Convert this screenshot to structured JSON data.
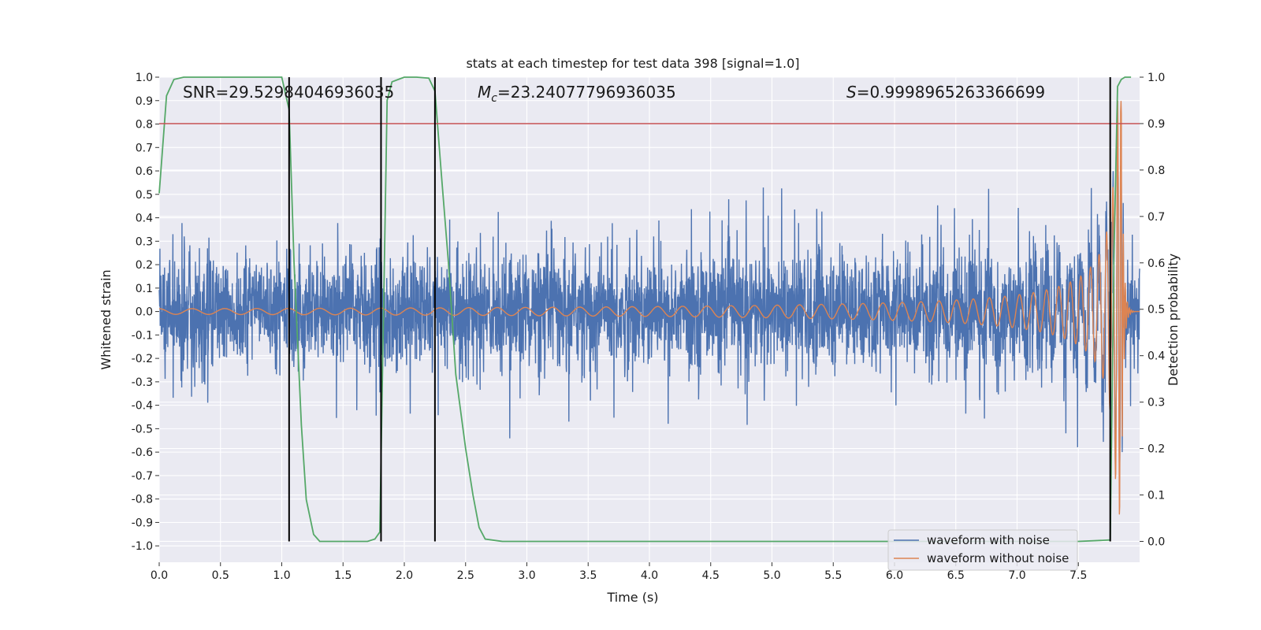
{
  "chart_data": {
    "type": "line",
    "title": "stats at each timestep for test data 398 [signal=1.0]",
    "xlabel": "Time (s)",
    "ylabel": "Whitened strain",
    "ylabel_right": "Detection probability",
    "xlim": [
      0,
      8
    ],
    "ylim": [
      -1.07,
      1.0
    ],
    "ylim_right": [
      -0.045,
      1.0
    ],
    "x_ticks": [
      "0.0",
      "0.5",
      "1.0",
      "1.5",
      "2.0",
      "2.5",
      "3.0",
      "3.5",
      "4.0",
      "4.5",
      "5.0",
      "5.5",
      "6.0",
      "6.5",
      "7.0",
      "7.5"
    ],
    "y_ticks": [
      "1.0",
      "0.9",
      "0.8",
      "0.7",
      "0.6",
      "0.5",
      "0.4",
      "0.3",
      "0.2",
      "0.1",
      "0.0",
      "-0.1",
      "-0.2",
      "-0.3",
      "-0.4",
      "-0.5",
      "-0.6",
      "-0.7",
      "-0.8",
      "-0.9",
      "-1.0"
    ],
    "y_ticks_right": [
      "1.0",
      "0.9",
      "0.8",
      "0.7",
      "0.6",
      "0.5",
      "0.4",
      "0.3",
      "0.2",
      "0.1",
      "0.0"
    ],
    "annotations": {
      "snr": "SNR=29.52984046936035",
      "mc_symbol": "M",
      "mc_sub": "c",
      "mc_value": "=23.24077796936035",
      "s_symbol": "S",
      "s_value": "=0.9998965263366699"
    },
    "legend": {
      "position": "lower right",
      "entries": [
        "waveform with noise",
        "waveform without noise"
      ]
    },
    "threshold": 0.9,
    "vertical_lines_x": [
      1.06,
      1.81,
      2.25,
      7.76
    ],
    "series": [
      {
        "name": "waveform with noise",
        "color": "#4c72b0",
        "description": "noisy whitened strain, roughly symmetric about 0 with amplitude ~0.2-0.55"
      },
      {
        "name": "waveform without noise",
        "color": "#dd8452",
        "description": "chirp signal growing in amplitude and frequency up to merger near 7.85 s",
        "merger_time": 7.85,
        "peak_amplitude": 0.9
      },
      {
        "name": "detection probability",
        "color": "#55a868",
        "axis": "right",
        "x": [
          0.0,
          0.06,
          0.12,
          0.2,
          0.3,
          0.5,
          0.7,
          0.9,
          1.0,
          1.06,
          1.1,
          1.16,
          1.2,
          1.26,
          1.31,
          1.4,
          1.5,
          1.6,
          1.7,
          1.76,
          1.8,
          1.86,
          1.9,
          2.0,
          2.1,
          2.2,
          2.25,
          2.3,
          2.36,
          2.42,
          2.5,
          2.56,
          2.61,
          2.66,
          2.8,
          3.0,
          4.0,
          5.0,
          6.0,
          7.0,
          7.5,
          7.76,
          7.79,
          7.82,
          7.85,
          7.88,
          7.93
        ],
        "y": [
          0.75,
          0.96,
          0.995,
          1.0,
          1.0,
          1.0,
          1.0,
          1.0,
          1.0,
          0.93,
          0.6,
          0.25,
          0.09,
          0.015,
          0.0,
          0.0,
          0.0,
          0.0,
          0.0,
          0.005,
          0.02,
          0.95,
          0.99,
          1.0,
          1.0,
          0.998,
          0.97,
          0.8,
          0.6,
          0.36,
          0.2,
          0.1,
          0.03,
          0.005,
          0.0,
          0.0,
          0.0,
          0.0,
          0.0,
          0.0,
          0.0,
          0.003,
          0.6,
          0.98,
          0.995,
          1.0,
          1.0
        ]
      }
    ]
  }
}
